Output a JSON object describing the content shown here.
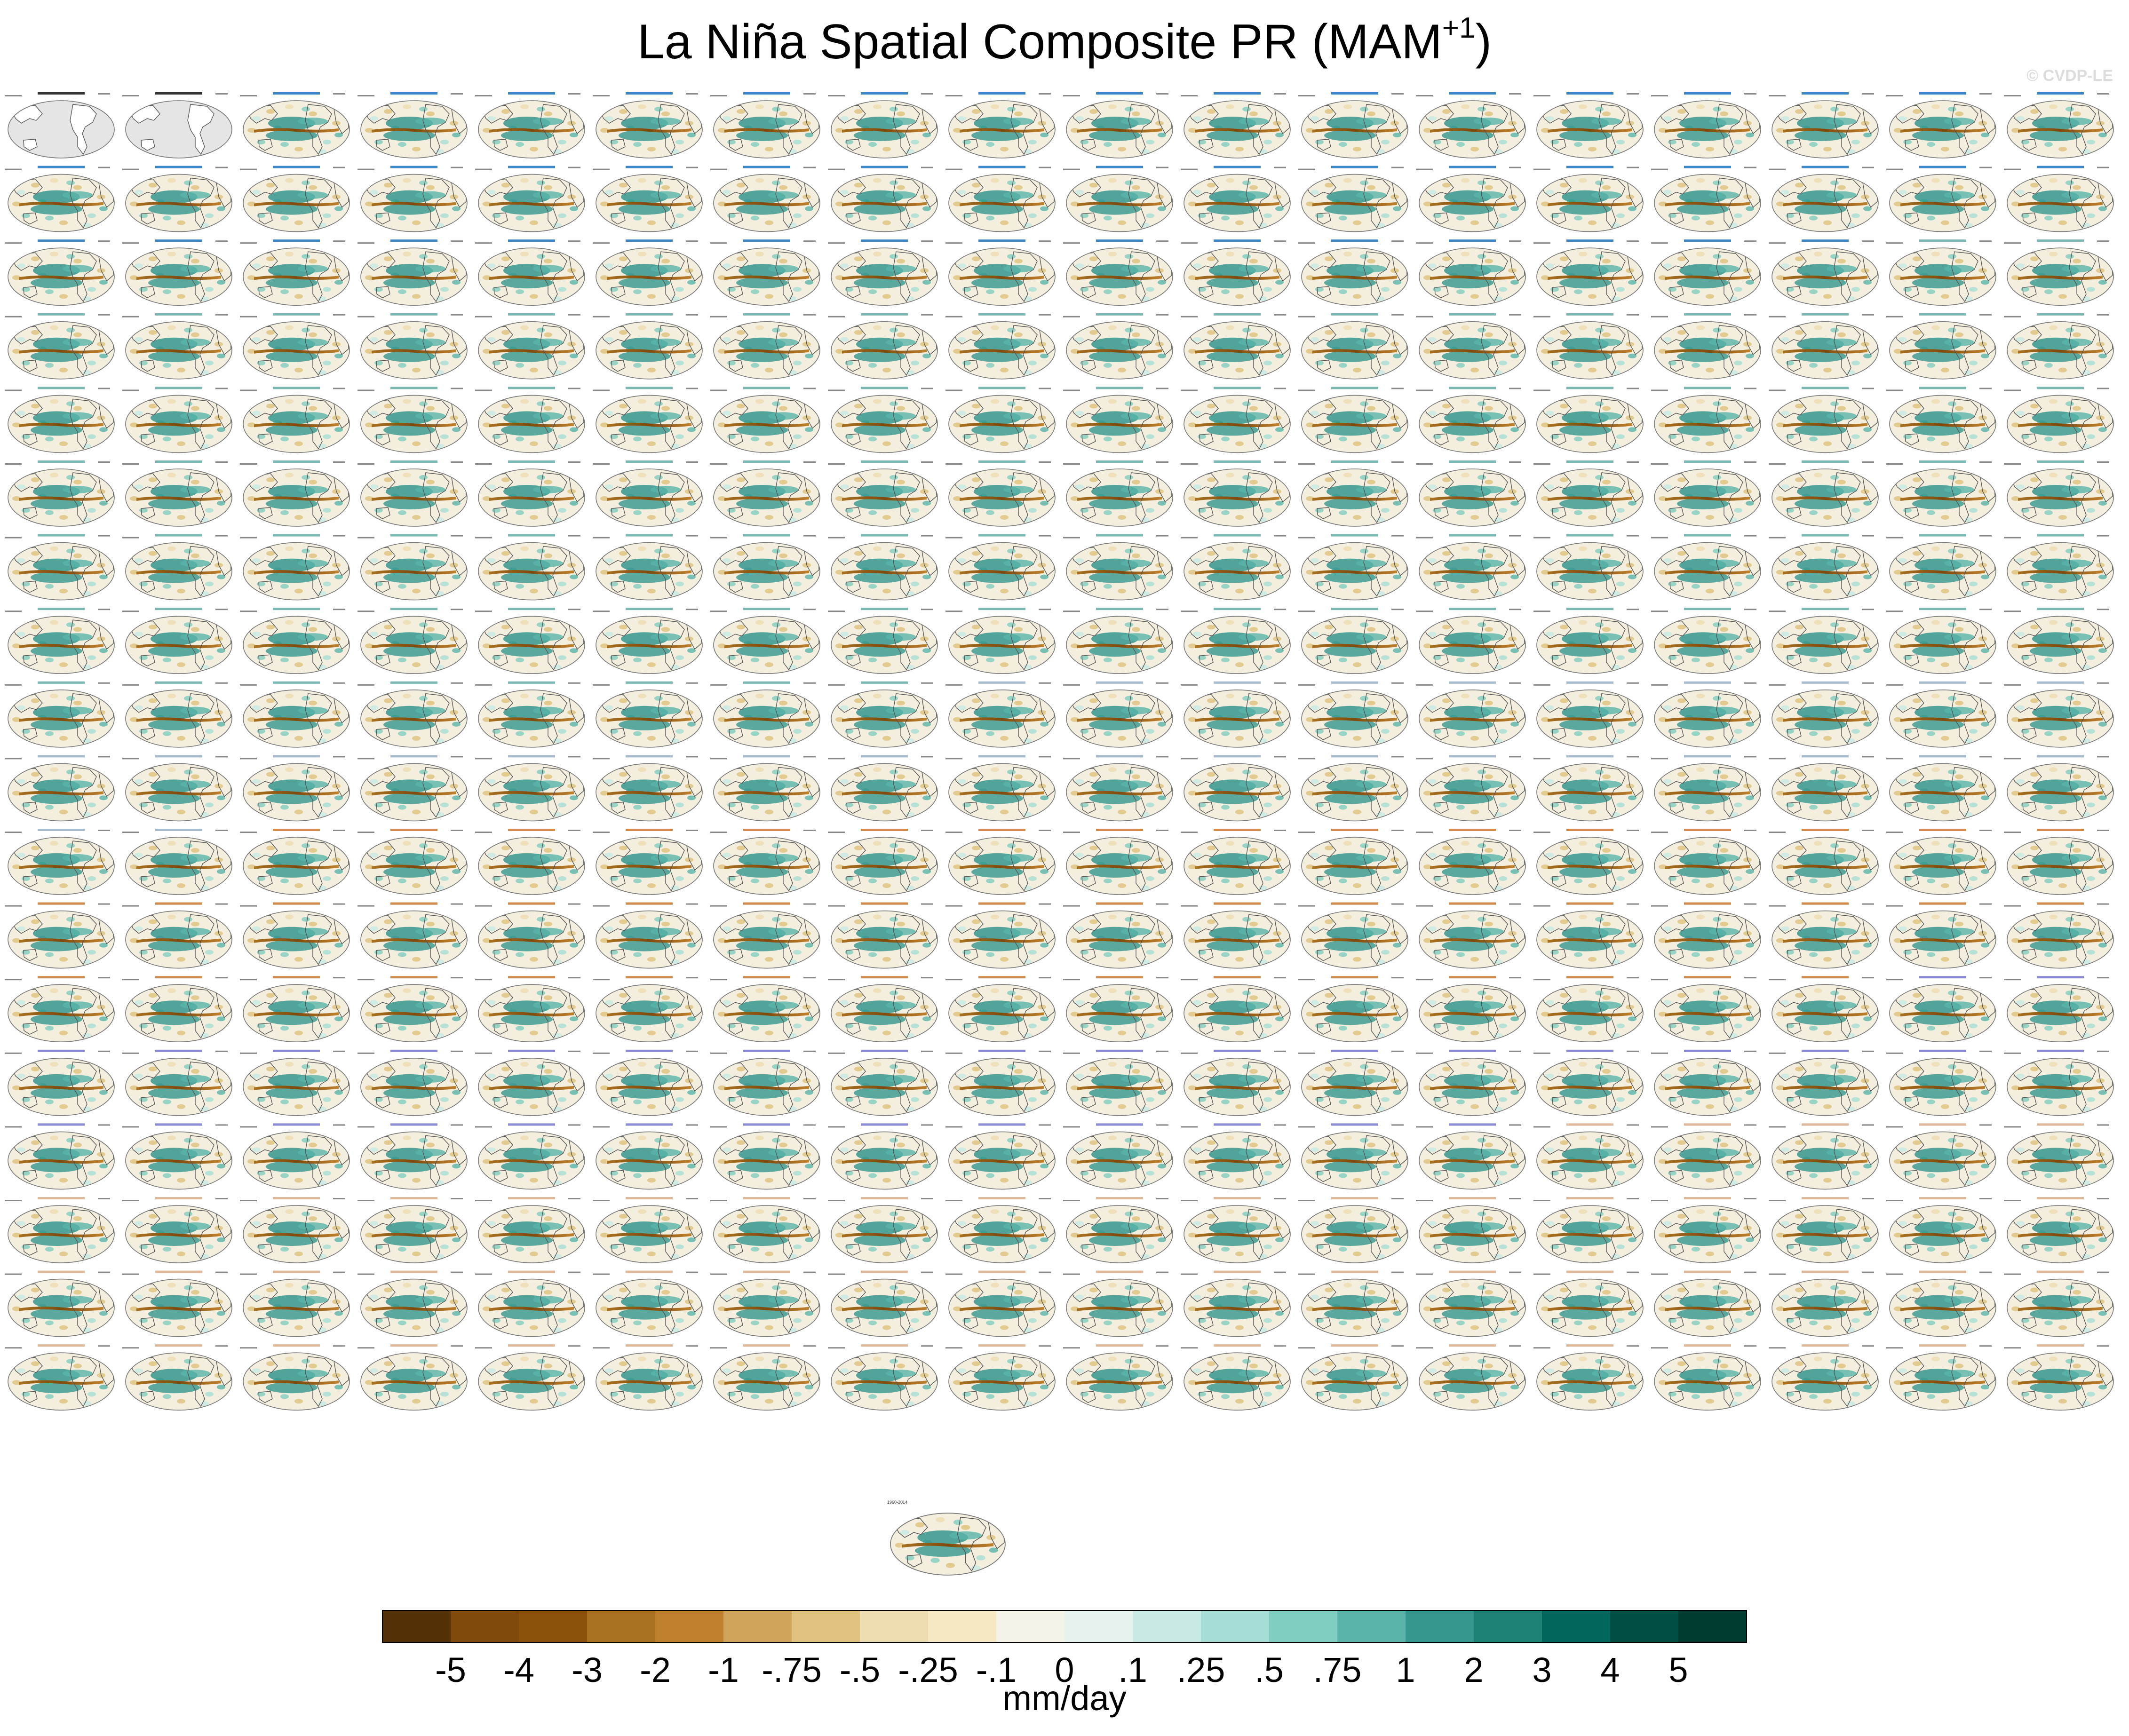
{
  "title": {
    "main": "La Niña Spatial Composite PR (MAM",
    "sup": "+1",
    "close": ")"
  },
  "watermark": "© CVDP-LE",
  "panel_grid": {
    "rows": 18,
    "cols": 18,
    "extra_panels": 1
  },
  "panel_text": {
    "period": "1960-2014"
  },
  "group_colors": {
    "observations": "#333333",
    "CanESM5": "#3b86c7",
    "CESM2-LENS": "#7ab8b4",
    "CNRM-CM6-1": "#a8bccf",
    "GISS-E2-1-G": "#d08a4a",
    "IPSL-CM6A-LR": "#8a8ad6",
    "MIROC6": "#e0b89a"
  },
  "colors": {
    "ocean": "#f3eedd",
    "obs_fill": "#e5e5e5",
    "land_line": "#555555",
    "frame": "#777777"
  },
  "chart_data": {
    "type": "heatmap",
    "title": "La Niña Spatial Composite PR (MAM+1)",
    "colorbar": {
      "units": "mm/day",
      "tick_labels": [
        "-5",
        "-4",
        "-3",
        "-2",
        "-1",
        "-.75",
        "-.5",
        "-.25",
        "-.1",
        "0",
        ".1",
        ".25",
        ".5",
        ".75",
        "1",
        "2",
        "3",
        "4",
        "5"
      ],
      "colors": [
        "#543005",
        "#7f4a0c",
        "#8c510a",
        "#a8701f",
        "#bf812d",
        "#d1a45c",
        "#dfc27d",
        "#eddcb0",
        "#f6e8c3",
        "#f5f2e8",
        "#e6f2ee",
        "#c7eae5",
        "#a6ddd4",
        "#80cdc1",
        "#5ab4aa",
        "#35978f",
        "#1f8277",
        "#01665e",
        "#004f45",
        "#003c30"
      ]
    }
  }
}
